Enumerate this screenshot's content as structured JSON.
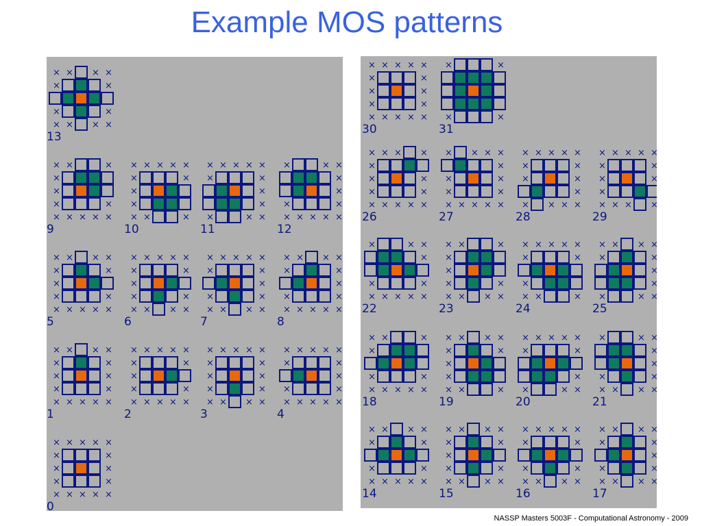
{
  "slide": {
    "title": "Example MOS patterns",
    "footer": "NASSP Masters 5003F - Computational Astronomy - 2009"
  },
  "colors": {
    "panel": "#b0b0b0",
    "grid": "#0b1780",
    "center": "#e8690c",
    "included": "#107a5e",
    "title": "#3a62de"
  },
  "legend_meaning": {
    "center": "centre pixel",
    "included": "pixel included in pattern",
    "x": "pixel not checked"
  },
  "patterns": [
    {
      "id": "0",
      "label": "0",
      "green": []
    },
    {
      "id": "1",
      "label": "1",
      "green": [
        [
          1,
          2
        ]
      ]
    },
    {
      "id": "2",
      "label": "2",
      "green": [
        [
          2,
          3
        ]
      ]
    },
    {
      "id": "3",
      "label": "3",
      "green": [
        [
          3,
          2
        ]
      ]
    },
    {
      "id": "4",
      "label": "4",
      "green": [
        [
          2,
          1
        ]
      ]
    },
    {
      "id": "5",
      "label": "5",
      "green": [
        [
          1,
          2
        ],
        [
          2,
          3
        ]
      ]
    },
    {
      "id": "6",
      "label": "6",
      "green": [
        [
          2,
          3
        ],
        [
          3,
          2
        ]
      ]
    },
    {
      "id": "7",
      "label": "7",
      "green": [
        [
          3,
          2
        ],
        [
          2,
          1
        ]
      ]
    },
    {
      "id": "8",
      "label": "8",
      "green": [
        [
          2,
          1
        ],
        [
          1,
          2
        ]
      ]
    },
    {
      "id": "9",
      "label": "9",
      "green": [
        [
          1,
          2
        ],
        [
          1,
          3
        ],
        [
          2,
          3
        ]
      ]
    },
    {
      "id": "10",
      "label": "10",
      "green": [
        [
          2,
          3
        ],
        [
          3,
          2
        ],
        [
          3,
          3
        ]
      ]
    },
    {
      "id": "11",
      "label": "11",
      "green": [
        [
          3,
          1
        ],
        [
          3,
          2
        ],
        [
          2,
          1
        ]
      ]
    },
    {
      "id": "12",
      "label": "12",
      "green": [
        [
          1,
          1
        ],
        [
          1,
          2
        ],
        [
          2,
          1
        ]
      ]
    },
    {
      "id": "13",
      "label": "13",
      "green": [
        [
          1,
          2
        ],
        [
          2,
          3
        ],
        [
          3,
          2
        ],
        [
          2,
          1
        ]
      ]
    },
    {
      "id": "14",
      "label": "14",
      "green": [
        [
          1,
          2
        ],
        [
          2,
          1
        ],
        [
          2,
          3
        ]
      ]
    },
    {
      "id": "15",
      "label": "15",
      "green": [
        [
          1,
          2
        ],
        [
          2,
          3
        ],
        [
          3,
          2
        ]
      ]
    },
    {
      "id": "16",
      "label": "16",
      "green": [
        [
          2,
          1
        ],
        [
          2,
          3
        ],
        [
          3,
          2
        ]
      ]
    },
    {
      "id": "17",
      "label": "17",
      "green": [
        [
          1,
          2
        ],
        [
          2,
          1
        ],
        [
          3,
          2
        ]
      ]
    },
    {
      "id": "18",
      "label": "18",
      "green": [
        [
          1,
          2
        ],
        [
          1,
          3
        ],
        [
          2,
          1
        ],
        [
          2,
          3
        ]
      ]
    },
    {
      "id": "19",
      "label": "19",
      "green": [
        [
          1,
          2
        ],
        [
          2,
          3
        ],
        [
          3,
          2
        ],
        [
          3,
          3
        ]
      ]
    },
    {
      "id": "20",
      "label": "20",
      "green": [
        [
          2,
          1
        ],
        [
          2,
          3
        ],
        [
          3,
          1
        ],
        [
          3,
          2
        ]
      ]
    },
    {
      "id": "21",
      "label": "21",
      "green": [
        [
          1,
          1
        ],
        [
          1,
          2
        ],
        [
          2,
          1
        ],
        [
          3,
          2
        ]
      ]
    },
    {
      "id": "22",
      "label": "22",
      "green": [
        [
          1,
          1
        ],
        [
          1,
          2
        ],
        [
          2,
          1
        ],
        [
          2,
          3
        ]
      ]
    },
    {
      "id": "23",
      "label": "23",
      "green": [
        [
          1,
          2
        ],
        [
          1,
          3
        ],
        [
          2,
          3
        ],
        [
          3,
          2
        ]
      ]
    },
    {
      "id": "24",
      "label": "24",
      "green": [
        [
          2,
          1
        ],
        [
          2,
          3
        ],
        [
          3,
          2
        ],
        [
          3,
          3
        ]
      ]
    },
    {
      "id": "25",
      "label": "25",
      "green": [
        [
          1,
          2
        ],
        [
          2,
          1
        ],
        [
          3,
          1
        ],
        [
          3,
          2
        ]
      ]
    },
    {
      "id": "26",
      "label": "26",
      "green": [
        [
          1,
          3
        ]
      ]
    },
    {
      "id": "27",
      "label": "27",
      "green": [
        [
          1,
          1
        ]
      ]
    },
    {
      "id": "28",
      "label": "28",
      "green": [
        [
          3,
          1
        ]
      ]
    },
    {
      "id": "29",
      "label": "29",
      "green": [
        [
          3,
          3
        ]
      ]
    },
    {
      "id": "30",
      "label": "30",
      "green": []
    },
    {
      "id": "31",
      "label": "31",
      "green": [
        [
          1,
          1
        ],
        [
          1,
          2
        ],
        [
          1,
          3
        ],
        [
          2,
          1
        ],
        [
          2,
          3
        ],
        [
          3,
          1
        ],
        [
          3,
          2
        ],
        [
          3,
          3
        ]
      ]
    }
  ]
}
